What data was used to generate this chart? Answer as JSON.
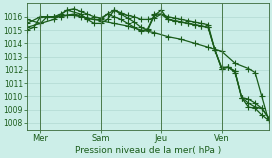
{
  "xlabel": "Pression niveau de la mer( hPa )",
  "background_color": "#cceee8",
  "line_color": "#1a5c1a",
  "grid_color": "#aad4cc",
  "tick_color": "#1a5c1a",
  "spine_color": "#3a6a3a",
  "ylim": [
    1007.5,
    1017.0
  ],
  "yticks": [
    1008,
    1009,
    1010,
    1011,
    1012,
    1013,
    1014,
    1015,
    1016
  ],
  "xlim": [
    0,
    144
  ],
  "day_positions": [
    8,
    44,
    80,
    116
  ],
  "day_labels": [
    "Mer",
    "Sam",
    "Jeu",
    "Ven"
  ],
  "vline_positions": [
    8,
    44,
    80,
    116
  ],
  "series": [
    [
      0,
      1015.2,
      8,
      1015.5,
      12,
      1016.0,
      16,
      1016.0,
      20,
      1016.0,
      24,
      1016.1,
      28,
      1016.1,
      32,
      1016.0,
      36,
      1015.9,
      40,
      1015.8,
      44,
      1015.8,
      48,
      1016.2,
      52,
      1016.5,
      56,
      1016.3,
      60,
      1016.1,
      64,
      1016.0,
      68,
      1015.8,
      72,
      1015.8,
      76,
      1015.9,
      80,
      1016.2,
      84,
      1016.0,
      88,
      1015.9,
      92,
      1015.8,
      96,
      1015.7,
      100,
      1015.6,
      104,
      1015.5,
      108,
      1015.4,
      112,
      1013.5,
      116,
      1012.2,
      120,
      1012.2,
      124,
      1011.9,
      128,
      1009.9,
      132,
      1009.5,
      136,
      1009.2,
      140,
      1009.1,
      144,
      1008.4
    ],
    [
      0,
      1015.5,
      8,
      1016.0,
      12,
      1016.0,
      16,
      1016.0,
      20,
      1016.2,
      24,
      1016.5,
      28,
      1016.6,
      32,
      1016.4,
      36,
      1016.2,
      40,
      1016.0,
      44,
      1015.9,
      48,
      1016.2,
      52,
      1016.0,
      56,
      1015.8,
      60,
      1015.5,
      64,
      1015.2,
      68,
      1014.9,
      72,
      1015.1,
      76,
      1016.2,
      80,
      1016.2,
      84,
      1015.8,
      88,
      1015.7,
      92,
      1015.6,
      96,
      1015.5,
      100,
      1015.4,
      104,
      1015.3,
      108,
      1015.2,
      112,
      1013.5,
      116,
      1012.1,
      120,
      1012.2,
      124,
      1011.8,
      128,
      1009.9,
      132,
      1009.2,
      136,
      1009.1,
      140,
      1008.6,
      144,
      1008.2
    ],
    [
      0,
      1015.0,
      4,
      1015.2,
      8,
      1016.0,
      16,
      1016.0,
      28,
      1016.2,
      36,
      1015.9,
      44,
      1015.7,
      52,
      1015.5,
      60,
      1015.3,
      68,
      1015.0,
      76,
      1014.8,
      84,
      1014.5,
      92,
      1014.3,
      100,
      1014.0,
      108,
      1013.7,
      116,
      1013.4,
      124,
      1012.5,
      132,
      1012.1,
      136,
      1011.8,
      140,
      1010.0,
      144,
      1008.2
    ],
    [
      0,
      1015.8,
      8,
      1015.5,
      16,
      1015.8,
      24,
      1016.5,
      32,
      1016.2,
      36,
      1015.8,
      40,
      1015.5,
      44,
      1015.5,
      48,
      1015.8,
      52,
      1016.5,
      56,
      1016.2,
      60,
      1015.9,
      64,
      1015.6,
      68,
      1015.2,
      72,
      1015.0,
      76,
      1016.1,
      80,
      1016.5,
      84,
      1015.8,
      88,
      1015.7,
      92,
      1015.6,
      96,
      1015.5,
      100,
      1015.4,
      104,
      1015.3,
      108,
      1015.2,
      112,
      1013.5,
      116,
      1012.1,
      120,
      1012.2,
      124,
      1011.9,
      128,
      1009.9,
      132,
      1009.8,
      136,
      1009.5,
      140,
      1009.1,
      144,
      1008.4
    ]
  ]
}
